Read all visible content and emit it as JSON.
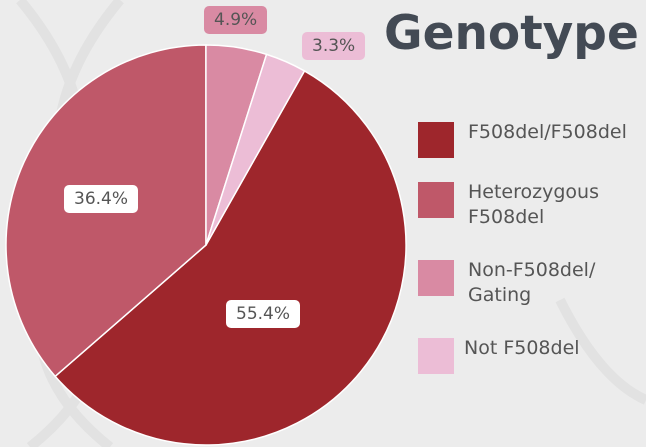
{
  "chart_data": {
    "type": "pie",
    "title": "Genotype",
    "categories": [
      "F508del/F508del",
      "Heterozygous F508del",
      "Non-F508del/ Gating",
      "Not F508del"
    ],
    "values": [
      55.4,
      36.4,
      4.9,
      3.3
    ],
    "value_labels": [
      "55.4%",
      "36.4%",
      "4.9%",
      "3.3%"
    ],
    "colors": [
      "#9e262c",
      "#bf5869",
      "#d98aa3",
      "#ecbdd6"
    ]
  }
}
